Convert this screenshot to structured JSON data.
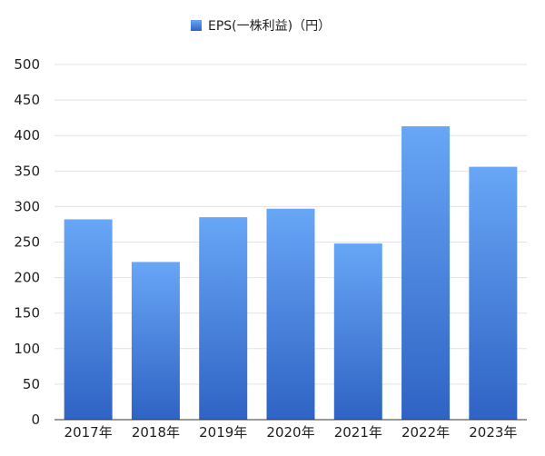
{
  "chart_data": {
    "type": "bar",
    "categories": [
      "2017年",
      "2018年",
      "2019年",
      "2020年",
      "2021年",
      "2022年",
      "2023年"
    ],
    "series": [
      {
        "name": "EPS(一株利益)（円）",
        "values": [
          282,
          222,
          285,
          297,
          248,
          413,
          356
        ]
      }
    ],
    "yticks": [
      "0",
      "50",
      "100",
      "150",
      "200",
      "250",
      "300",
      "350",
      "400",
      "450",
      "500"
    ],
    "ylim": [
      0,
      500
    ],
    "grid": true,
    "legend": "top-center",
    "colors": {
      "bar_top": "#68a6f6",
      "bar_bottom": "#2f63c4",
      "grid": "#e3e3e3",
      "axis": "#333333"
    }
  }
}
